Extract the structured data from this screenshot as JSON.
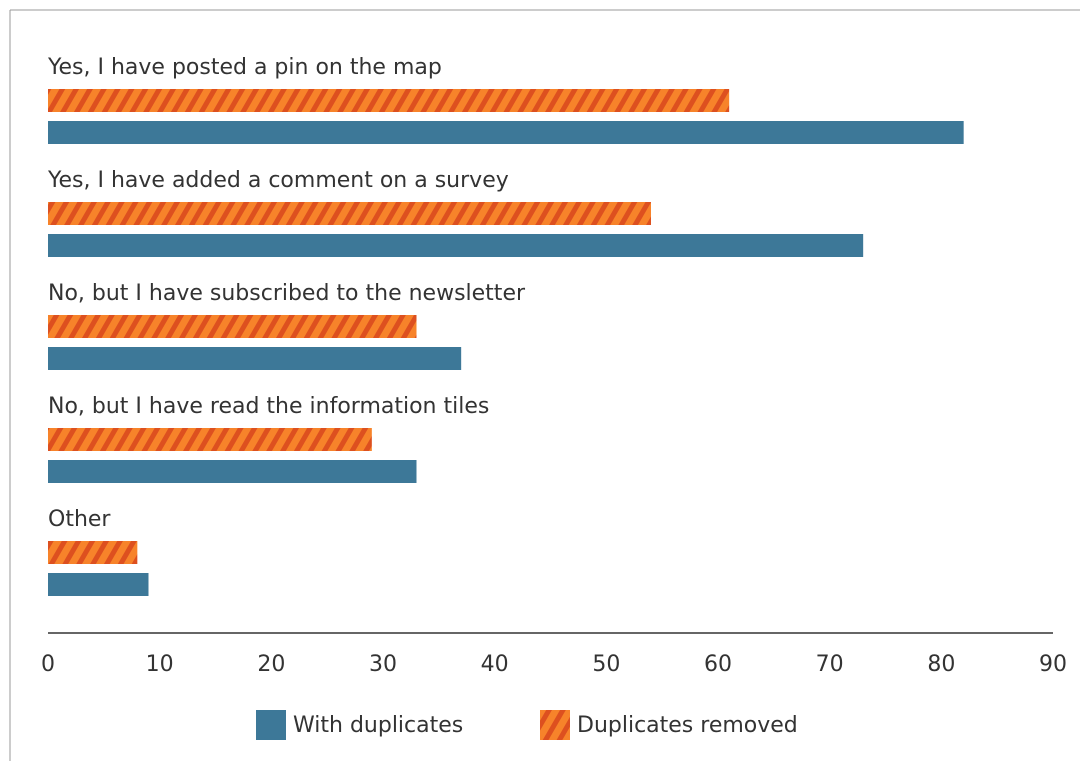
{
  "chart_data": {
    "type": "hbar",
    "categories": [
      "Yes, I have posted a pin on the map",
      "Yes, I have added a comment on a survey",
      "No, but I have subscribed to the newsletter",
      "No, but I have read the information tiles",
      "Other"
    ],
    "series": [
      {
        "name": "With duplicates",
        "color": "#3d7898",
        "values": [
          82,
          73,
          37,
          33,
          9
        ]
      },
      {
        "name": "Duplicates removed",
        "color": "#f7832a",
        "hatch": "#dd501f",
        "values": [
          61,
          54,
          33,
          29,
          8
        ]
      }
    ],
    "xlim": [
      0,
      90
    ],
    "xticks": [
      0,
      10,
      20,
      30,
      40,
      50,
      60,
      70,
      80,
      90
    ],
    "grid": false,
    "legend": "bottom"
  }
}
